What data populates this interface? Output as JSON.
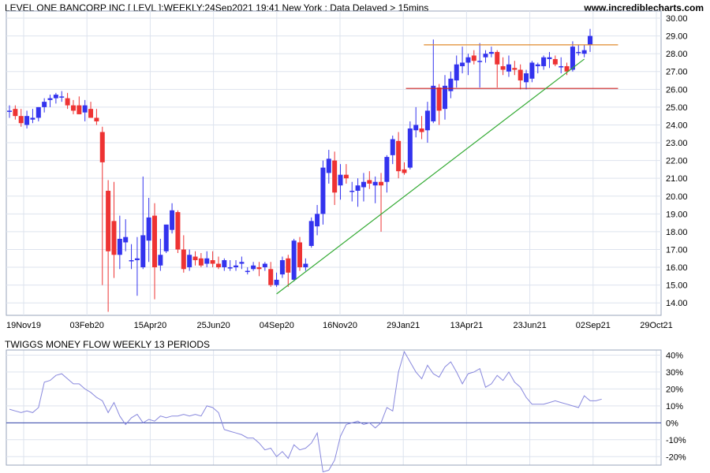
{
  "header": {
    "title": "LEVEL ONE BANCORP INC [ LEVL ]:WEEKLY:24Sep2021 19:41 New York : Data Delayed > 15mins",
    "site": "www.incrediblecharts.com"
  },
  "colors": {
    "up": "#3333ee",
    "down": "#ee3333",
    "wick_up": "#3333ee",
    "wick_down": "#ee3333",
    "grid": "#dde3ee",
    "resistance": "#e08a2c",
    "support": "#cc2222",
    "trendline": "#33aa33",
    "money_flow": "#8888dd",
    "zero_line": "#3344aa"
  },
  "chart_data": [
    {
      "type": "candlestick",
      "title": "LEVEL ONE BANCORP INC [ LEVL ]:WEEKLY",
      "x_ticks": [
        "19Nov19",
        "03Feb20",
        "15Apr20",
        "25Jun20",
        "04Sep20",
        "16Nov20",
        "29Jan21",
        "13Apr21",
        "23Jun21",
        "02Sep21",
        "29Oct21"
      ],
      "y_ticks": [
        "14.00",
        "15.00",
        "16.00",
        "17.00",
        "18.00",
        "19.00",
        "20.00",
        "21.00",
        "22.00",
        "23.00",
        "24.00",
        "25.00",
        "26.00",
        "27.00",
        "28.00",
        "29.00",
        "30.00"
      ],
      "ylim": [
        13.3,
        30.4
      ],
      "x_start": "2019-11-19",
      "x_end": "2021-10-29",
      "candles": [
        {
          "o": 24.8,
          "h": 25.1,
          "l": 24.4,
          "c": 24.8
        },
        {
          "o": 24.9,
          "h": 25.1,
          "l": 24.3,
          "c": 24.5
        },
        {
          "o": 24.5,
          "h": 24.9,
          "l": 23.9,
          "c": 24.1
        },
        {
          "o": 24.0,
          "h": 24.8,
          "l": 23.8,
          "c": 24.5
        },
        {
          "o": 24.3,
          "h": 24.9,
          "l": 24.1,
          "c": 24.4
        },
        {
          "o": 24.4,
          "h": 25.0,
          "l": 24.2,
          "c": 25.0
        },
        {
          "o": 25.0,
          "h": 25.5,
          "l": 24.7,
          "c": 25.3
        },
        {
          "o": 25.4,
          "h": 25.7,
          "l": 25.0,
          "c": 25.5
        },
        {
          "o": 25.5,
          "h": 25.8,
          "l": 25.2,
          "c": 25.7
        },
        {
          "o": 25.6,
          "h": 25.9,
          "l": 25.3,
          "c": 25.6
        },
        {
          "o": 25.5,
          "h": 25.8,
          "l": 24.9,
          "c": 25.1
        },
        {
          "o": 25.1,
          "h": 25.4,
          "l": 24.6,
          "c": 24.8
        },
        {
          "o": 25.1,
          "h": 25.6,
          "l": 24.6,
          "c": 24.6
        },
        {
          "o": 24.7,
          "h": 25.4,
          "l": 24.2,
          "c": 25.1
        },
        {
          "o": 24.9,
          "h": 25.3,
          "l": 24.4,
          "c": 24.4
        },
        {
          "o": 24.4,
          "h": 24.9,
          "l": 24.0,
          "c": 24.2
        },
        {
          "o": 23.6,
          "h": 23.9,
          "l": 15.0,
          "c": 21.9
        },
        {
          "o": 20.3,
          "h": 20.9,
          "l": 13.5,
          "c": 16.9
        },
        {
          "o": 18.6,
          "h": 20.8,
          "l": 15.4,
          "c": 16.7
        },
        {
          "o": 16.7,
          "h": 18.9,
          "l": 15.9,
          "c": 17.6
        },
        {
          "o": 17.4,
          "h": 18.7,
          "l": 16.9,
          "c": 17.7
        },
        {
          "o": 16.4,
          "h": 17.3,
          "l": 15.9,
          "c": 16.4
        },
        {
          "o": 16.4,
          "h": 17.7,
          "l": 14.4,
          "c": 16.5
        },
        {
          "o": 16.0,
          "h": 21.1,
          "l": 15.9,
          "c": 17.8
        },
        {
          "o": 17.5,
          "h": 19.9,
          "l": 16.3,
          "c": 18.8
        },
        {
          "o": 18.9,
          "h": 19.6,
          "l": 14.2,
          "c": 16.0
        },
        {
          "o": 16.1,
          "h": 17.6,
          "l": 15.8,
          "c": 16.7
        },
        {
          "o": 16.9,
          "h": 18.4,
          "l": 16.8,
          "c": 18.4
        },
        {
          "o": 18.1,
          "h": 19.6,
          "l": 17.9,
          "c": 19.2
        },
        {
          "o": 19.1,
          "h": 19.2,
          "l": 16.8,
          "c": 17.0
        },
        {
          "o": 17.0,
          "h": 17.8,
          "l": 15.7,
          "c": 15.9
        },
        {
          "o": 16.0,
          "h": 17.0,
          "l": 15.8,
          "c": 16.7
        },
        {
          "o": 16.6,
          "h": 16.9,
          "l": 16.1,
          "c": 16.4
        },
        {
          "o": 16.5,
          "h": 16.8,
          "l": 16.0,
          "c": 16.1
        },
        {
          "o": 16.2,
          "h": 16.9,
          "l": 16.0,
          "c": 16.5
        },
        {
          "o": 16.4,
          "h": 16.9,
          "l": 16.0,
          "c": 16.2
        },
        {
          "o": 16.2,
          "h": 16.6,
          "l": 15.9,
          "c": 16.0
        },
        {
          "o": 16.0,
          "h": 16.5,
          "l": 15.8,
          "c": 16.4
        },
        {
          "o": 16.0,
          "h": 16.4,
          "l": 15.8,
          "c": 16.0
        },
        {
          "o": 16.0,
          "h": 16.4,
          "l": 15.8,
          "c": 16.1
        },
        {
          "o": 16.2,
          "h": 16.6,
          "l": 15.9,
          "c": 16.3
        },
        {
          "o": 15.8,
          "h": 16.0,
          "l": 15.6,
          "c": 15.8
        },
        {
          "o": 15.9,
          "h": 16.3,
          "l": 15.8,
          "c": 16.1
        },
        {
          "o": 16.0,
          "h": 16.3,
          "l": 15.5,
          "c": 15.9
        },
        {
          "o": 16.0,
          "h": 16.3,
          "l": 15.8,
          "c": 16.2
        },
        {
          "o": 15.9,
          "h": 16.3,
          "l": 14.9,
          "c": 15.0
        },
        {
          "o": 15.0,
          "h": 15.7,
          "l": 14.9,
          "c": 15.3
        },
        {
          "o": 15.6,
          "h": 16.6,
          "l": 15.4,
          "c": 16.4
        },
        {
          "o": 16.5,
          "h": 16.7,
          "l": 14.9,
          "c": 15.7
        },
        {
          "o": 15.3,
          "h": 17.6,
          "l": 15.2,
          "c": 17.5
        },
        {
          "o": 17.4,
          "h": 17.7,
          "l": 15.8,
          "c": 16.0
        },
        {
          "o": 16.0,
          "h": 16.5,
          "l": 15.8,
          "c": 16.2
        },
        {
          "o": 17.2,
          "h": 18.8,
          "l": 17.1,
          "c": 18.6
        },
        {
          "o": 18.3,
          "h": 19.5,
          "l": 17.8,
          "c": 19.0
        },
        {
          "o": 19.0,
          "h": 22.0,
          "l": 18.4,
          "c": 21.6
        },
        {
          "o": 21.3,
          "h": 22.6,
          "l": 20.7,
          "c": 22.1
        },
        {
          "o": 22.0,
          "h": 22.5,
          "l": 19.5,
          "c": 20.2
        },
        {
          "o": 20.6,
          "h": 21.8,
          "l": 19.8,
          "c": 21.2
        },
        {
          "o": 21.2,
          "h": 21.8,
          "l": 20.7,
          "c": 21.0
        },
        {
          "o": 20.3,
          "h": 20.8,
          "l": 19.7,
          "c": 20.3
        },
        {
          "o": 20.3,
          "h": 21.0,
          "l": 19.4,
          "c": 20.6
        },
        {
          "o": 20.5,
          "h": 21.3,
          "l": 19.7,
          "c": 20.8
        },
        {
          "o": 20.9,
          "h": 21.4,
          "l": 20.4,
          "c": 20.7
        },
        {
          "o": 20.6,
          "h": 21.1,
          "l": 19.6,
          "c": 20.8
        },
        {
          "o": 20.8,
          "h": 21.3,
          "l": 18.0,
          "c": 20.6
        },
        {
          "o": 20.8,
          "h": 22.3,
          "l": 20.2,
          "c": 22.2
        },
        {
          "o": 22.3,
          "h": 23.4,
          "l": 21.8,
          "c": 23.2
        },
        {
          "o": 23.1,
          "h": 23.6,
          "l": 21.0,
          "c": 21.4
        },
        {
          "o": 21.5,
          "h": 21.9,
          "l": 21.2,
          "c": 21.3
        },
        {
          "o": 21.6,
          "h": 24.2,
          "l": 21.5,
          "c": 23.8
        },
        {
          "o": 23.7,
          "h": 25.0,
          "l": 23.3,
          "c": 24.0
        },
        {
          "o": 23.8,
          "h": 24.5,
          "l": 23.2,
          "c": 23.6
        },
        {
          "o": 23.7,
          "h": 25.3,
          "l": 23.0,
          "c": 24.8
        },
        {
          "o": 24.2,
          "h": 28.8,
          "l": 24.1,
          "c": 26.2
        },
        {
          "o": 26.1,
          "h": 26.3,
          "l": 24.0,
          "c": 24.8
        },
        {
          "o": 24.9,
          "h": 26.8,
          "l": 24.3,
          "c": 26.2
        },
        {
          "o": 25.9,
          "h": 27.0,
          "l": 25.5,
          "c": 26.6
        },
        {
          "o": 26.5,
          "h": 27.9,
          "l": 26.1,
          "c": 27.4
        },
        {
          "o": 27.3,
          "h": 28.4,
          "l": 26.9,
          "c": 27.5
        },
        {
          "o": 27.5,
          "h": 28.0,
          "l": 26.8,
          "c": 27.8
        },
        {
          "o": 27.9,
          "h": 28.2,
          "l": 27.4,
          "c": 27.6
        },
        {
          "o": 27.6,
          "h": 28.6,
          "l": 26.1,
          "c": 27.6
        },
        {
          "o": 27.8,
          "h": 28.2,
          "l": 27.5,
          "c": 28.0
        },
        {
          "o": 28.0,
          "h": 28.4,
          "l": 27.8,
          "c": 28.1
        },
        {
          "o": 28.1,
          "h": 28.2,
          "l": 26.1,
          "c": 27.4
        },
        {
          "o": 27.3,
          "h": 27.8,
          "l": 26.8,
          "c": 27.1
        },
        {
          "o": 27.0,
          "h": 27.9,
          "l": 26.7,
          "c": 27.4
        },
        {
          "o": 27.2,
          "h": 27.6,
          "l": 26.8,
          "c": 27.1
        },
        {
          "o": 27.1,
          "h": 27.4,
          "l": 26.0,
          "c": 26.5
        },
        {
          "o": 26.4,
          "h": 27.1,
          "l": 26.0,
          "c": 26.9
        },
        {
          "o": 26.6,
          "h": 27.6,
          "l": 26.4,
          "c": 27.5
        },
        {
          "o": 27.3,
          "h": 27.5,
          "l": 26.9,
          "c": 27.4
        },
        {
          "o": 27.3,
          "h": 27.9,
          "l": 27.1,
          "c": 27.8
        },
        {
          "o": 27.7,
          "h": 28.1,
          "l": 27.2,
          "c": 27.8
        },
        {
          "o": 27.7,
          "h": 27.9,
          "l": 27.3,
          "c": 27.4
        },
        {
          "o": 27.3,
          "h": 27.8,
          "l": 26.9,
          "c": 27.3
        },
        {
          "o": 27.3,
          "h": 27.5,
          "l": 26.8,
          "c": 27.0
        },
        {
          "o": 27.1,
          "h": 28.7,
          "l": 27.0,
          "c": 28.4
        },
        {
          "o": 28.1,
          "h": 28.5,
          "l": 27.9,
          "c": 28.1
        },
        {
          "o": 28.0,
          "h": 28.5,
          "l": 27.8,
          "c": 28.2
        },
        {
          "o": 28.5,
          "h": 29.4,
          "l": 28.1,
          "c": 29.0
        }
      ],
      "lines": [
        {
          "name": "resistance",
          "from_index": 73,
          "to_index": 104,
          "y1": 28.5,
          "y2": 28.5
        },
        {
          "name": "support",
          "from_index": 71,
          "to_index": 104,
          "y1": 26.05,
          "y2": 26.05
        },
        {
          "name": "trendline",
          "from_index": 46,
          "to_index": 99,
          "y1": 14.5,
          "y2": 27.7
        }
      ]
    },
    {
      "type": "line",
      "title": "TWIGGS MONEY FLOW WEEKLY 13 PERIODS",
      "y_ticks": [
        "40%",
        "30%",
        "20%",
        "10%",
        "0%",
        "-10%",
        "-20%"
      ],
      "ylim": [
        -0.25,
        0.43
      ],
      "values": [
        0.08,
        0.07,
        0.06,
        0.07,
        0.06,
        0.09,
        0.24,
        0.25,
        0.28,
        0.29,
        0.26,
        0.23,
        0.23,
        0.2,
        0.18,
        0.15,
        0.13,
        0.06,
        0.12,
        0.04,
        -0.01,
        0.03,
        0.05,
        0.0,
        0.02,
        0.01,
        0.04,
        0.03,
        0.04,
        0.04,
        0.05,
        0.04,
        0.05,
        0.04,
        0.1,
        0.09,
        0.06,
        -0.04,
        -0.05,
        -0.06,
        -0.07,
        -0.09,
        -0.09,
        -0.12,
        -0.16,
        -0.15,
        -0.2,
        -0.17,
        -0.21,
        -0.13,
        -0.16,
        -0.15,
        -0.12,
        -0.06,
        -0.29,
        -0.28,
        -0.22,
        -0.08,
        -0.01,
        0.0,
        0.01,
        -0.01,
        0.0,
        -0.03,
        0.0,
        0.09,
        0.07,
        0.3,
        0.42,
        0.36,
        0.3,
        0.26,
        0.34,
        0.29,
        0.27,
        0.33,
        0.36,
        0.3,
        0.23,
        0.29,
        0.3,
        0.32,
        0.21,
        0.23,
        0.28,
        0.25,
        0.3,
        0.24,
        0.21,
        0.15,
        0.11,
        0.11,
        0.11,
        0.12,
        0.13,
        0.12,
        0.11,
        0.1,
        0.09,
        0.16,
        0.13,
        0.13,
        0.14
      ]
    }
  ]
}
